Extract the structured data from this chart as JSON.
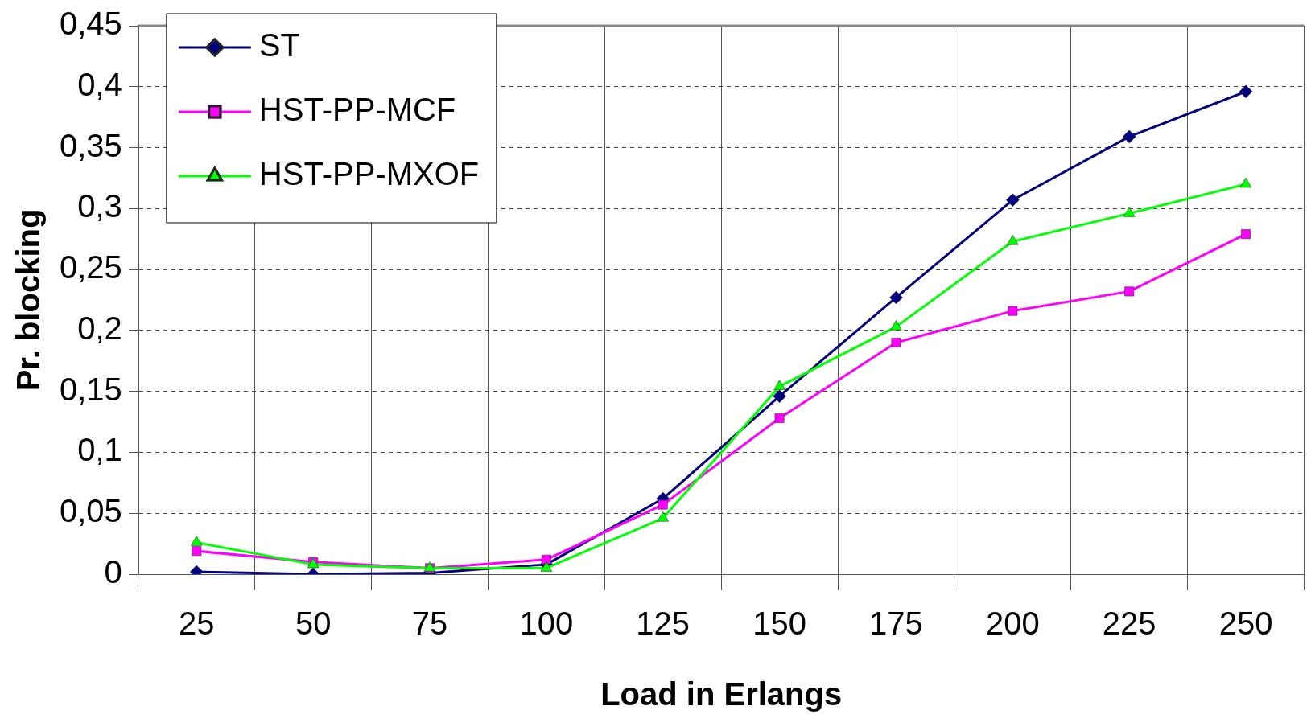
{
  "chart_data": {
    "type": "line",
    "xlabel": "Load in Erlangs",
    "ylabel": "Pr. blocking",
    "categories": [
      "25",
      "50",
      "75",
      "100",
      "125",
      "150",
      "175",
      "200",
      "225",
      "250"
    ],
    "ylim": [
      0,
      0.45
    ],
    "yticks": [
      {
        "value": 0,
        "label": "0"
      },
      {
        "value": 0.05,
        "label": "0,05"
      },
      {
        "value": 0.1,
        "label": "0,1"
      },
      {
        "value": 0.15,
        "label": "0,15"
      },
      {
        "value": 0.2,
        "label": "0,2"
      },
      {
        "value": 0.25,
        "label": "0,25"
      },
      {
        "value": 0.3,
        "label": "0,3"
      },
      {
        "value": 0.35,
        "label": "0,35"
      },
      {
        "value": 0.4,
        "label": "0,4"
      },
      {
        "value": 0.45,
        "label": "0,45"
      }
    ],
    "grid": true,
    "legend": "top left",
    "line_style": "solid",
    "series": [
      {
        "name": "ST",
        "color": "#000080",
        "marker": "diamond",
        "values": [
          0.002,
          0,
          0.001,
          0.008,
          0.062,
          0.146,
          0.227,
          0.307,
          0.359,
          0.396
        ]
      },
      {
        "name": "HST-PP-MCF",
        "color": "#ff00ff",
        "marker": "square",
        "values": [
          0.019,
          0.01,
          0.005,
          0.012,
          0.057,
          0.128,
          0.19,
          0.216,
          0.232,
          0.279
        ]
      },
      {
        "name": "HST-PP-MXOF",
        "color": "#00ff00",
        "marker": "triangle",
        "values": [
          0.026,
          0.008,
          0.005,
          0.005,
          0.046,
          0.154,
          0.203,
          0.273,
          0.296,
          0.32
        ]
      }
    ]
  }
}
